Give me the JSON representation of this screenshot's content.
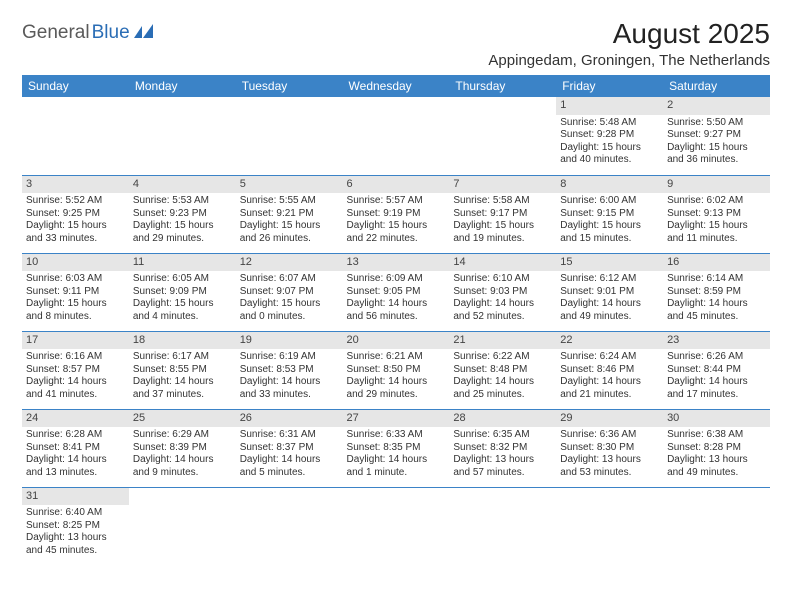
{
  "logo": {
    "part1": "General",
    "part2": "Blue"
  },
  "title": "August 2025",
  "location": "Appingedam, Groningen, The Netherlands",
  "colors": {
    "header_bg": "#3b83c7",
    "header_fg": "#ffffff",
    "daynum_bg": "#e6e6e6",
    "grid_border": "#3b83c7",
    "logo_gray": "#5a5a5a",
    "logo_blue": "#2a6db5"
  },
  "day_headers": [
    "Sunday",
    "Monday",
    "Tuesday",
    "Wednesday",
    "Thursday",
    "Friday",
    "Saturday"
  ],
  "weeks": [
    [
      null,
      null,
      null,
      null,
      null,
      {
        "n": "1",
        "sr": "Sunrise: 5:48 AM",
        "ss": "Sunset: 9:28 PM",
        "d1": "Daylight: 15 hours",
        "d2": "and 40 minutes."
      },
      {
        "n": "2",
        "sr": "Sunrise: 5:50 AM",
        "ss": "Sunset: 9:27 PM",
        "d1": "Daylight: 15 hours",
        "d2": "and 36 minutes."
      }
    ],
    [
      {
        "n": "3",
        "sr": "Sunrise: 5:52 AM",
        "ss": "Sunset: 9:25 PM",
        "d1": "Daylight: 15 hours",
        "d2": "and 33 minutes."
      },
      {
        "n": "4",
        "sr": "Sunrise: 5:53 AM",
        "ss": "Sunset: 9:23 PM",
        "d1": "Daylight: 15 hours",
        "d2": "and 29 minutes."
      },
      {
        "n": "5",
        "sr": "Sunrise: 5:55 AM",
        "ss": "Sunset: 9:21 PM",
        "d1": "Daylight: 15 hours",
        "d2": "and 26 minutes."
      },
      {
        "n": "6",
        "sr": "Sunrise: 5:57 AM",
        "ss": "Sunset: 9:19 PM",
        "d1": "Daylight: 15 hours",
        "d2": "and 22 minutes."
      },
      {
        "n": "7",
        "sr": "Sunrise: 5:58 AM",
        "ss": "Sunset: 9:17 PM",
        "d1": "Daylight: 15 hours",
        "d2": "and 19 minutes."
      },
      {
        "n": "8",
        "sr": "Sunrise: 6:00 AM",
        "ss": "Sunset: 9:15 PM",
        "d1": "Daylight: 15 hours",
        "d2": "and 15 minutes."
      },
      {
        "n": "9",
        "sr": "Sunrise: 6:02 AM",
        "ss": "Sunset: 9:13 PM",
        "d1": "Daylight: 15 hours",
        "d2": "and 11 minutes."
      }
    ],
    [
      {
        "n": "10",
        "sr": "Sunrise: 6:03 AM",
        "ss": "Sunset: 9:11 PM",
        "d1": "Daylight: 15 hours",
        "d2": "and 8 minutes."
      },
      {
        "n": "11",
        "sr": "Sunrise: 6:05 AM",
        "ss": "Sunset: 9:09 PM",
        "d1": "Daylight: 15 hours",
        "d2": "and 4 minutes."
      },
      {
        "n": "12",
        "sr": "Sunrise: 6:07 AM",
        "ss": "Sunset: 9:07 PM",
        "d1": "Daylight: 15 hours",
        "d2": "and 0 minutes."
      },
      {
        "n": "13",
        "sr": "Sunrise: 6:09 AM",
        "ss": "Sunset: 9:05 PM",
        "d1": "Daylight: 14 hours",
        "d2": "and 56 minutes."
      },
      {
        "n": "14",
        "sr": "Sunrise: 6:10 AM",
        "ss": "Sunset: 9:03 PM",
        "d1": "Daylight: 14 hours",
        "d2": "and 52 minutes."
      },
      {
        "n": "15",
        "sr": "Sunrise: 6:12 AM",
        "ss": "Sunset: 9:01 PM",
        "d1": "Daylight: 14 hours",
        "d2": "and 49 minutes."
      },
      {
        "n": "16",
        "sr": "Sunrise: 6:14 AM",
        "ss": "Sunset: 8:59 PM",
        "d1": "Daylight: 14 hours",
        "d2": "and 45 minutes."
      }
    ],
    [
      {
        "n": "17",
        "sr": "Sunrise: 6:16 AM",
        "ss": "Sunset: 8:57 PM",
        "d1": "Daylight: 14 hours",
        "d2": "and 41 minutes."
      },
      {
        "n": "18",
        "sr": "Sunrise: 6:17 AM",
        "ss": "Sunset: 8:55 PM",
        "d1": "Daylight: 14 hours",
        "d2": "and 37 minutes."
      },
      {
        "n": "19",
        "sr": "Sunrise: 6:19 AM",
        "ss": "Sunset: 8:53 PM",
        "d1": "Daylight: 14 hours",
        "d2": "and 33 minutes."
      },
      {
        "n": "20",
        "sr": "Sunrise: 6:21 AM",
        "ss": "Sunset: 8:50 PM",
        "d1": "Daylight: 14 hours",
        "d2": "and 29 minutes."
      },
      {
        "n": "21",
        "sr": "Sunrise: 6:22 AM",
        "ss": "Sunset: 8:48 PM",
        "d1": "Daylight: 14 hours",
        "d2": "and 25 minutes."
      },
      {
        "n": "22",
        "sr": "Sunrise: 6:24 AM",
        "ss": "Sunset: 8:46 PM",
        "d1": "Daylight: 14 hours",
        "d2": "and 21 minutes."
      },
      {
        "n": "23",
        "sr": "Sunrise: 6:26 AM",
        "ss": "Sunset: 8:44 PM",
        "d1": "Daylight: 14 hours",
        "d2": "and 17 minutes."
      }
    ],
    [
      {
        "n": "24",
        "sr": "Sunrise: 6:28 AM",
        "ss": "Sunset: 8:41 PM",
        "d1": "Daylight: 14 hours",
        "d2": "and 13 minutes."
      },
      {
        "n": "25",
        "sr": "Sunrise: 6:29 AM",
        "ss": "Sunset: 8:39 PM",
        "d1": "Daylight: 14 hours",
        "d2": "and 9 minutes."
      },
      {
        "n": "26",
        "sr": "Sunrise: 6:31 AM",
        "ss": "Sunset: 8:37 PM",
        "d1": "Daylight: 14 hours",
        "d2": "and 5 minutes."
      },
      {
        "n": "27",
        "sr": "Sunrise: 6:33 AM",
        "ss": "Sunset: 8:35 PM",
        "d1": "Daylight: 14 hours",
        "d2": "and 1 minute."
      },
      {
        "n": "28",
        "sr": "Sunrise: 6:35 AM",
        "ss": "Sunset: 8:32 PM",
        "d1": "Daylight: 13 hours",
        "d2": "and 57 minutes."
      },
      {
        "n": "29",
        "sr": "Sunrise: 6:36 AM",
        "ss": "Sunset: 8:30 PM",
        "d1": "Daylight: 13 hours",
        "d2": "and 53 minutes."
      },
      {
        "n": "30",
        "sr": "Sunrise: 6:38 AM",
        "ss": "Sunset: 8:28 PM",
        "d1": "Daylight: 13 hours",
        "d2": "and 49 minutes."
      }
    ],
    [
      {
        "n": "31",
        "sr": "Sunrise: 6:40 AM",
        "ss": "Sunset: 8:25 PM",
        "d1": "Daylight: 13 hours",
        "d2": "and 45 minutes."
      },
      null,
      null,
      null,
      null,
      null,
      null
    ]
  ]
}
